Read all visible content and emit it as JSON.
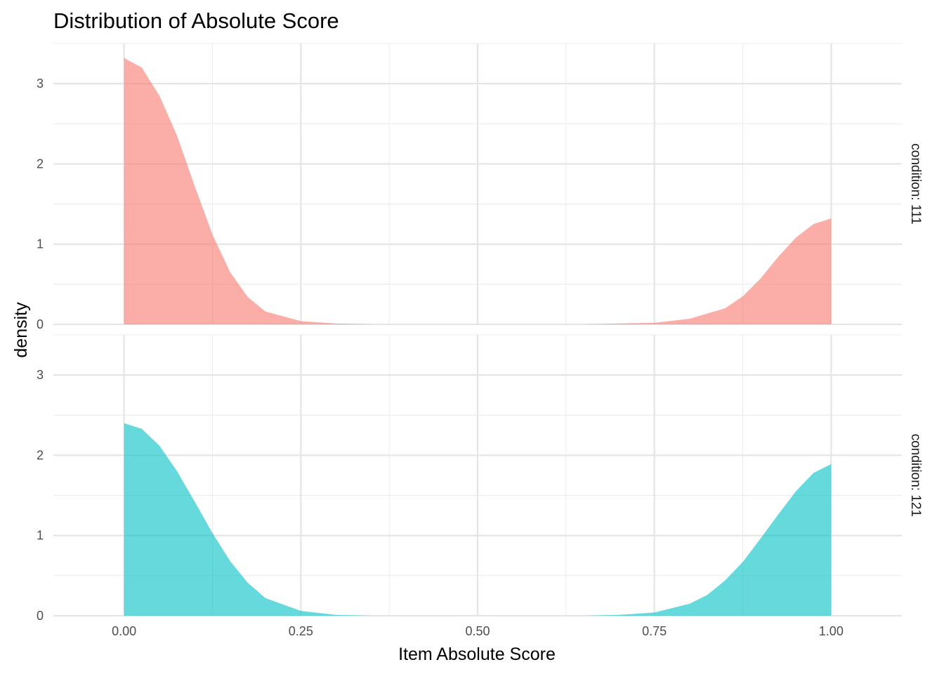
{
  "chart_data": {
    "type": "area",
    "title": "Distribution of Absolute Score",
    "xlabel": "Item Absolute Score",
    "ylabel": "density",
    "xlim": [
      -0.1,
      1.1
    ],
    "ylim": [
      0,
      3.5
    ],
    "x_ticks": [
      "0.00",
      "0.25",
      "0.50",
      "0.75",
      "1.00"
    ],
    "y_ticks": [
      "0",
      "1",
      "2",
      "3"
    ],
    "grid": true,
    "legend": "none",
    "panels": [
      {
        "label": "condition: 111",
        "color": "#F8766D",
        "x": [
          0,
          0.025,
          0.05,
          0.075,
          0.1,
          0.125,
          0.15,
          0.175,
          0.2,
          0.25,
          0.3,
          0.35,
          0.4,
          0.5,
          0.6,
          0.65,
          0.7,
          0.75,
          0.8,
          0.85,
          0.875,
          0.9,
          0.925,
          0.95,
          0.975,
          1.0
        ],
        "y": [
          3.32,
          3.2,
          2.85,
          2.35,
          1.72,
          1.12,
          0.65,
          0.34,
          0.16,
          0.04,
          0.01,
          0.0,
          0.0,
          0.0,
          0.0,
          0.0,
          0.01,
          0.02,
          0.07,
          0.2,
          0.35,
          0.57,
          0.84,
          1.08,
          1.25,
          1.32
        ]
      },
      {
        "label": "condition: 121",
        "color": "#00BFC4",
        "x": [
          0,
          0.025,
          0.05,
          0.075,
          0.1,
          0.125,
          0.15,
          0.175,
          0.2,
          0.25,
          0.3,
          0.35,
          0.4,
          0.5,
          0.6,
          0.65,
          0.7,
          0.75,
          0.8,
          0.825,
          0.85,
          0.875,
          0.9,
          0.925,
          0.95,
          0.975,
          1.0
        ],
        "y": [
          2.4,
          2.33,
          2.12,
          1.8,
          1.42,
          1.03,
          0.68,
          0.41,
          0.22,
          0.06,
          0.01,
          0.0,
          0.0,
          0.0,
          0.0,
          0.0,
          0.01,
          0.04,
          0.15,
          0.26,
          0.44,
          0.67,
          0.96,
          1.26,
          1.55,
          1.78,
          1.89
        ]
      }
    ]
  }
}
